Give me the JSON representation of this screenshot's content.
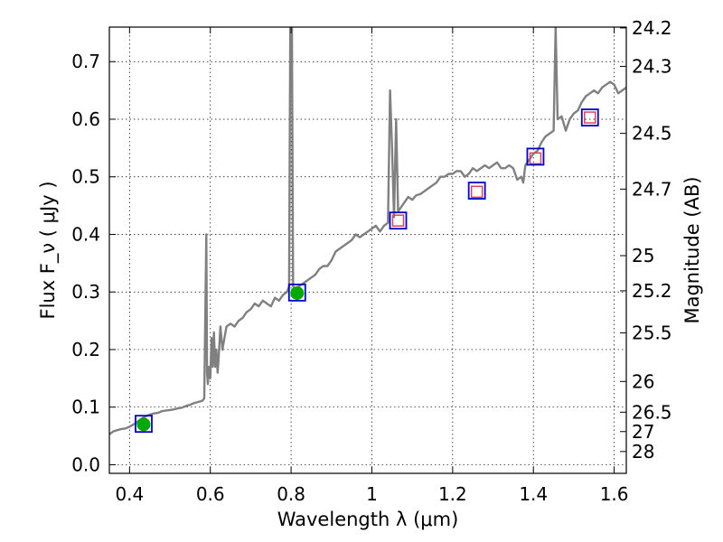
{
  "chart_data": {
    "type": "line",
    "xlabel": "Wavelength  λ (μm)",
    "ylabel": "Flux  F_ν  ( μJy )",
    "y2label": "Magnitude (AB)",
    "xlim": [
      0.35,
      1.63
    ],
    "ylim": [
      -0.015,
      0.76
    ],
    "grid": true,
    "x_ticks": [
      "0.4",
      "0.6",
      "0.8",
      "1",
      "1.2",
      "1.4",
      "1.6"
    ],
    "y_ticks": [
      "0.0",
      "0.1",
      "0.2",
      "0.3",
      "0.4",
      "0.5",
      "0.6",
      "0.7"
    ],
    "y2_ticks": [
      "24.2",
      "24.3",
      "24.5",
      "24.7",
      "25",
      "25.2",
      "25.5",
      "26",
      "26.5",
      "27",
      "28"
    ],
    "series": [
      {
        "color": "#808080",
        "x": [
          0.35,
          0.36,
          0.37,
          0.38,
          0.39,
          0.4,
          0.41,
          0.42,
          0.43,
          0.44,
          0.45,
          0.46,
          0.47,
          0.48,
          0.49,
          0.5,
          0.51,
          0.52,
          0.53,
          0.54,
          0.55,
          0.56,
          0.57,
          0.58,
          0.585,
          0.59,
          0.592,
          0.594,
          0.596,
          0.6,
          0.603,
          0.606,
          0.609,
          0.612,
          0.615,
          0.618,
          0.62,
          0.625,
          0.63,
          0.64,
          0.65,
          0.66,
          0.67,
          0.68,
          0.69,
          0.7,
          0.71,
          0.72,
          0.73,
          0.74,
          0.75,
          0.76,
          0.77,
          0.78,
          0.79,
          0.795,
          0.798,
          0.8,
          0.802,
          0.805,
          0.81,
          0.82,
          0.83,
          0.84,
          0.85,
          0.86,
          0.87,
          0.88,
          0.89,
          0.9,
          0.91,
          0.92,
          0.93,
          0.94,
          0.95,
          0.96,
          0.97,
          0.98,
          0.99,
          1.0,
          1.01,
          1.02,
          1.03,
          1.04,
          1.045,
          1.05,
          1.055,
          1.06,
          1.065,
          1.07,
          1.08,
          1.09,
          1.1,
          1.11,
          1.12,
          1.13,
          1.14,
          1.15,
          1.16,
          1.17,
          1.18,
          1.19,
          1.2,
          1.21,
          1.22,
          1.23,
          1.24,
          1.25,
          1.26,
          1.27,
          1.28,
          1.29,
          1.3,
          1.31,
          1.32,
          1.33,
          1.34,
          1.35,
          1.36,
          1.37,
          1.375,
          1.38,
          1.39,
          1.4,
          1.41,
          1.42,
          1.43,
          1.44,
          1.45,
          1.455,
          1.46,
          1.47,
          1.48,
          1.49,
          1.5,
          1.51,
          1.52,
          1.53,
          1.54,
          1.55,
          1.56,
          1.57,
          1.58,
          1.59,
          1.6,
          1.61,
          1.62,
          1.63
        ],
        "y": [
          0.053,
          0.058,
          0.06,
          0.062,
          0.063,
          0.066,
          0.07,
          0.075,
          0.08,
          0.084,
          0.087,
          0.089,
          0.09,
          0.093,
          0.094,
          0.095,
          0.096,
          0.098,
          0.099,
          0.102,
          0.104,
          0.107,
          0.109,
          0.111,
          0.115,
          0.4,
          0.16,
          0.14,
          0.17,
          0.15,
          0.22,
          0.17,
          0.23,
          0.17,
          0.2,
          0.16,
          0.18,
          0.24,
          0.2,
          0.24,
          0.245,
          0.24,
          0.25,
          0.255,
          0.265,
          0.27,
          0.28,
          0.275,
          0.285,
          0.28,
          0.275,
          0.29,
          0.285,
          0.295,
          0.3,
          0.31,
          0.76,
          0.76,
          0.76,
          0.31,
          0.305,
          0.31,
          0.315,
          0.32,
          0.325,
          0.33,
          0.34,
          0.345,
          0.345,
          0.355,
          0.37,
          0.375,
          0.38,
          0.385,
          0.39,
          0.4,
          0.395,
          0.4,
          0.405,
          0.41,
          0.415,
          0.405,
          0.415,
          0.42,
          0.65,
          0.55,
          0.43,
          0.6,
          0.44,
          0.445,
          0.455,
          0.465,
          0.46,
          0.468,
          0.47,
          0.475,
          0.48,
          0.485,
          0.49,
          0.5,
          0.5,
          0.505,
          0.505,
          0.51,
          0.51,
          0.5,
          0.505,
          0.515,
          0.51,
          0.515,
          0.52,
          0.515,
          0.52,
          0.525,
          0.515,
          0.515,
          0.52,
          0.515,
          0.495,
          0.5,
          0.49,
          0.52,
          0.53,
          0.54,
          0.545,
          0.56,
          0.57,
          0.575,
          0.58,
          0.76,
          0.6,
          0.605,
          0.58,
          0.6,
          0.61,
          0.615,
          0.63,
          0.64,
          0.645,
          0.65,
          0.645,
          0.655,
          0.66,
          0.665,
          0.66,
          0.645,
          0.65,
          0.655
        ]
      }
    ],
    "filled_points": [
      {
        "x": 0.435,
        "y": 0.07,
        "yerr": 0.012,
        "color": "#00aa00"
      },
      {
        "x": 0.815,
        "y": 0.298,
        "yerr": 0.012,
        "color": "#00aa00"
      }
    ],
    "box_markers": [
      {
        "x": 0.435,
        "y": 0.071
      },
      {
        "x": 0.815,
        "y": 0.299
      },
      {
        "x": 1.065,
        "y": 0.424
      },
      {
        "x": 1.26,
        "y": 0.476
      },
      {
        "x": 1.405,
        "y": 0.535
      },
      {
        "x": 1.54,
        "y": 0.603
      }
    ],
    "open_markers": [
      {
        "x": 1.065,
        "y": 0.424
      },
      {
        "x": 1.26,
        "y": 0.474
      },
      {
        "x": 1.405,
        "y": 0.532
      },
      {
        "x": 1.54,
        "y": 0.603
      }
    ],
    "colors": {
      "spectrum": "#808080",
      "box_marker": "#0000cc",
      "open_marker": "#dd4455",
      "filled_point": "#00aa00",
      "grid": "#000000"
    }
  }
}
